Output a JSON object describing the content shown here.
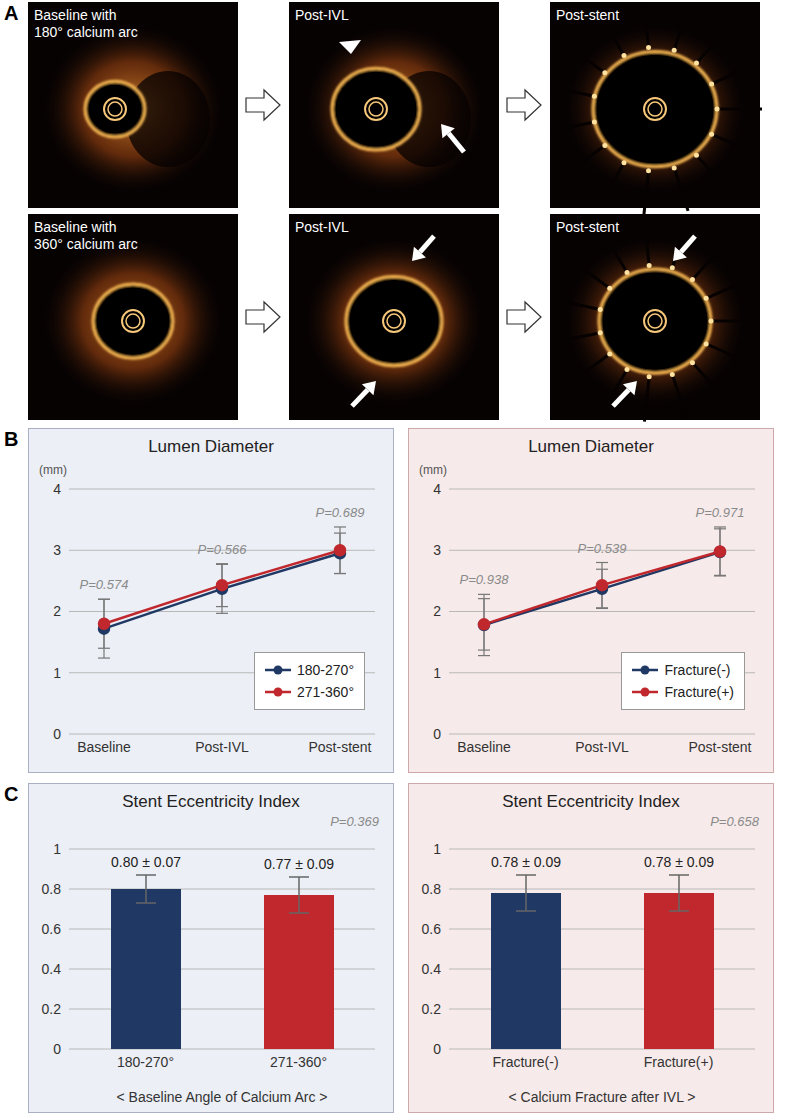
{
  "panel_labels": [
    "A",
    "B",
    "C"
  ],
  "panel_a": {
    "images": [
      [
        {
          "title_lines": [
            "Baseline with",
            "180° calcium arc"
          ]
        },
        {
          "title_lines": [
            "Post-IVL"
          ]
        },
        {
          "title_lines": [
            "Post-stent"
          ]
        }
      ],
      [
        {
          "title_lines": [
            "Baseline with",
            "360° calcium arc"
          ]
        },
        {
          "title_lines": [
            "Post-IVL"
          ]
        },
        {
          "title_lines": [
            "Post-stent"
          ]
        }
      ]
    ]
  },
  "chart_data": [
    {
      "type": "line",
      "title": "Lumen Diameter",
      "y_label": "(mm)",
      "categories": [
        "Baseline",
        "Post-IVL",
        "Post-stent"
      ],
      "ylim": [
        0,
        4
      ],
      "yticks": [
        0,
        1,
        2,
        3,
        4
      ],
      "grid": true,
      "legend": "lower right",
      "marker": "circle",
      "annotations": [
        "P=0.574",
        "P=0.566",
        "P=0.689"
      ],
      "series": [
        {
          "name": "180-270°",
          "color": "#1f3864",
          "values": [
            1.72,
            2.37,
            2.95
          ],
          "errors": [
            0.48,
            0.4,
            0.33
          ]
        },
        {
          "name": "271-360°",
          "color": "#c0282d",
          "values": [
            1.8,
            2.43,
            3.0
          ],
          "errors": [
            0.4,
            0.35,
            0.38
          ]
        }
      ]
    },
    {
      "type": "line",
      "title": "Lumen Diameter",
      "y_label": "(mm)",
      "categories": [
        "Baseline",
        "Post-IVL",
        "Post-stent"
      ],
      "ylim": [
        0,
        4
      ],
      "yticks": [
        0,
        1,
        2,
        3,
        4
      ],
      "grid": true,
      "legend": "lower right",
      "marker": "circle",
      "annotations": [
        "P=0.938",
        "P=0.539",
        "P=0.971"
      ],
      "series": [
        {
          "name": "Fracture(-)",
          "color": "#1f3864",
          "values": [
            1.78,
            2.37,
            2.97
          ],
          "errors": [
            0.5,
            0.32,
            0.38
          ]
        },
        {
          "name": "Fracture(+)",
          "color": "#c0282d",
          "values": [
            1.79,
            2.43,
            2.98
          ],
          "errors": [
            0.42,
            0.37,
            0.4
          ]
        }
      ]
    },
    {
      "type": "bar",
      "title": "Stent Eccentricity Index",
      "x_label": "< Baseline Angle of Calcium Arc >",
      "categories": [
        "180-270°",
        "271-360°"
      ],
      "values": [
        0.8,
        0.77
      ],
      "errors": [
        0.07,
        0.09
      ],
      "value_labels": [
        "0.80 ± 0.07",
        "0.77 ± 0.09"
      ],
      "colors": [
        "#1f3864",
        "#c0282d"
      ],
      "data_labels": true,
      "ylim": [
        0,
        1
      ],
      "yticks": [
        0,
        0.2,
        0.4,
        0.6,
        0.8,
        1
      ],
      "grid": true,
      "annotations": [
        "P=0.369"
      ]
    },
    {
      "type": "bar",
      "title": "Stent Eccentricity Index",
      "x_label": "< Calcium Fracture after IVL >",
      "categories": [
        "Fracture(-)",
        "Fracture(+)"
      ],
      "values": [
        0.78,
        0.78
      ],
      "errors": [
        0.09,
        0.09
      ],
      "value_labels": [
        "0.78 ± 0.09",
        "0.78 ± 0.09"
      ],
      "colors": [
        "#1f3864",
        "#c0282d"
      ],
      "data_labels": true,
      "ylim": [
        0,
        1
      ],
      "yticks": [
        0,
        0.2,
        0.4,
        0.6,
        0.8,
        1
      ],
      "grid": true,
      "annotations": [
        "P=0.658"
      ]
    }
  ]
}
